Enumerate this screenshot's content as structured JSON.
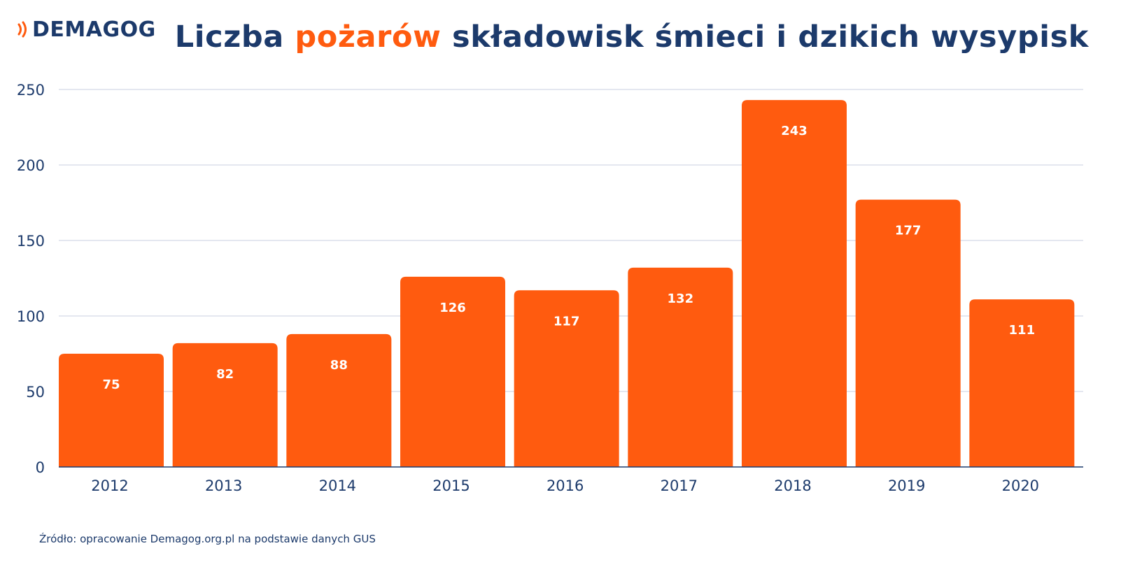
{
  "brand": {
    "name": "DEMAGOG"
  },
  "title": {
    "before": "Liczba ",
    "highlight": "pożarów",
    "after": " składowisk śmieci i dzikich wysypisk"
  },
  "source": "Źródło: opracowanie Demagog.org.pl na podstawie danych GUS",
  "colors": {
    "bar": "#ff5b0f",
    "text": "#1c3a6b",
    "grid": "#c9cfe0",
    "label": "#ffffff"
  },
  "chart_data": {
    "type": "bar",
    "categories": [
      "2012",
      "2013",
      "2014",
      "2015",
      "2016",
      "2017",
      "2018",
      "2019",
      "2020"
    ],
    "values": [
      75,
      82,
      88,
      126,
      117,
      132,
      243,
      177,
      111
    ],
    "yticks": [
      0,
      50,
      100,
      150,
      200,
      250
    ],
    "ylim": [
      0,
      250
    ],
    "grid": true
  }
}
